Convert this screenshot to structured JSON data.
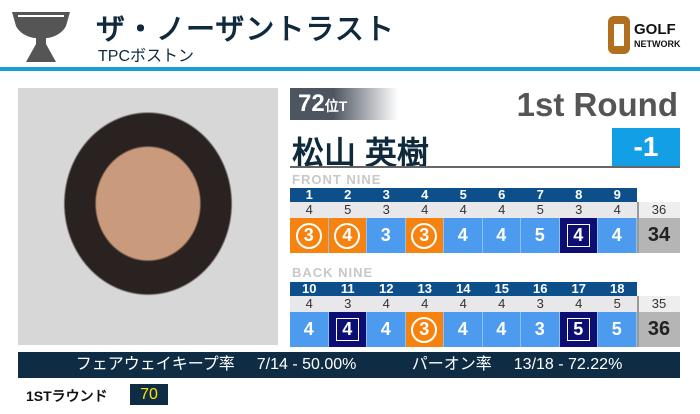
{
  "header": {
    "title": "ザ・ノーザントラスト",
    "venue": "TPCボストン",
    "logo_text": [
      "GOLF",
      "NETWORK"
    ],
    "trophy_icon": "trophy-icon"
  },
  "player": {
    "rank": "72",
    "rank_suffix": "位T",
    "round": "1st Round",
    "name": "松山 英樹",
    "to_par": "-1"
  },
  "front": {
    "label": "FRONT NINE",
    "holes": [
      "1",
      "2",
      "3",
      "4",
      "5",
      "6",
      "7",
      "8",
      "9"
    ],
    "pars": [
      "4",
      "5",
      "3",
      "4",
      "4",
      "4",
      "5",
      "3",
      "4"
    ],
    "scores": [
      "3",
      "4",
      "3",
      "3",
      "4",
      "4",
      "5",
      "4",
      "4"
    ],
    "types": [
      "birdie",
      "birdie",
      "par",
      "birdie",
      "par",
      "par",
      "par",
      "bogey",
      "par"
    ],
    "par_total": "36",
    "score_total": "34"
  },
  "back": {
    "label": "BACK NINE",
    "holes": [
      "10",
      "11",
      "12",
      "13",
      "14",
      "15",
      "16",
      "17",
      "18"
    ],
    "pars": [
      "4",
      "3",
      "4",
      "4",
      "4",
      "4",
      "3",
      "4",
      "5"
    ],
    "scores": [
      "4",
      "4",
      "4",
      "3",
      "4",
      "4",
      "3",
      "5",
      "5"
    ],
    "types": [
      "par",
      "bogey",
      "par",
      "birdie",
      "par",
      "par",
      "par",
      "bogey",
      "par"
    ],
    "par_total": "35",
    "score_total": "36"
  },
  "stats": {
    "fairway_label": "フェアウェイキープ率",
    "fairway_value": "7/14 - 50.00%",
    "gir_label": "パーオン率",
    "gir_value": "13/18 - 72.22%"
  },
  "rounds": {
    "label": "1STラウンド",
    "value": "70"
  },
  "colors": {
    "birdie": "#f6830f",
    "par": "#4c9bef",
    "bogey": "#0c0e74",
    "accent": "#139fe6"
  }
}
